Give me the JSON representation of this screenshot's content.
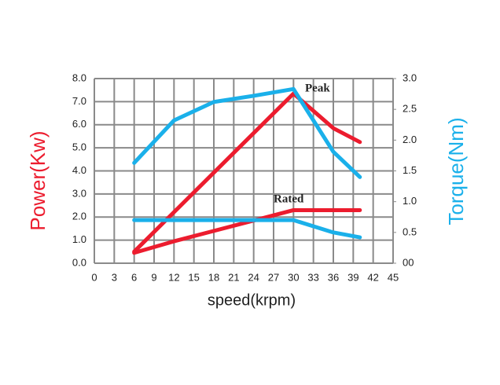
{
  "chart_data": {
    "type": "line",
    "xlabel": "speed(krpm)",
    "ylabel": "Power(Kw)",
    "y2label": "Torque(Nm)",
    "xlim": [
      0,
      45
    ],
    "xticks": [
      0,
      3,
      6,
      9,
      12,
      15,
      18,
      21,
      24,
      27,
      30,
      33,
      36,
      39,
      42,
      45
    ],
    "ylim": [
      0,
      8
    ],
    "yticks": [
      {
        "value": 0,
        "label": "0.0"
      },
      {
        "value": 1,
        "label": "1.0"
      },
      {
        "value": 2,
        "label": "2.0"
      },
      {
        "value": 3,
        "label": "3.0"
      },
      {
        "value": 4,
        "label": "4.0"
      },
      {
        "value": 5,
        "label": "5.0"
      },
      {
        "value": 6,
        "label": "6.0"
      },
      {
        "value": 7,
        "label": "7.0"
      },
      {
        "value": 8,
        "label": "8.0"
      }
    ],
    "y2lim": [
      0,
      3
    ],
    "y2ticks": [
      {
        "value": 0,
        "label": "00"
      },
      0.5,
      {
        "value": 1,
        "label": "1.0"
      },
      1.5,
      {
        "value": 2,
        "label": "2.0"
      },
      2.5,
      {
        "value": 3,
        "label": "3.0"
      }
    ],
    "grid": true,
    "annotations": [
      "Peak",
      "Rated"
    ],
    "series": [
      {
        "color": "#ec1c2e",
        "axis": "y",
        "x": [
          6,
          30,
          36,
          40
        ],
        "values": [
          0.5,
          7.35,
          5.85,
          5.25
        ]
      },
      {
        "color": "#ec1c2e",
        "axis": "y",
        "x": [
          6,
          12,
          18,
          24,
          30,
          40
        ],
        "values": [
          0.45,
          0.95,
          1.4,
          1.85,
          2.3,
          2.3
        ]
      },
      {
        "color": "#1ab0ea",
        "axis": "y2",
        "x": [
          6,
          12,
          18,
          24,
          30,
          36,
          40
        ],
        "values": [
          1.63,
          2.32,
          2.62,
          2.72,
          2.83,
          1.81,
          1.4
        ]
      },
      {
        "color": "#1ab0ea",
        "axis": "y2",
        "x": [
          6,
          30,
          36,
          40
        ],
        "values": [
          0.7,
          0.7,
          0.5,
          0.42
        ]
      }
    ]
  }
}
